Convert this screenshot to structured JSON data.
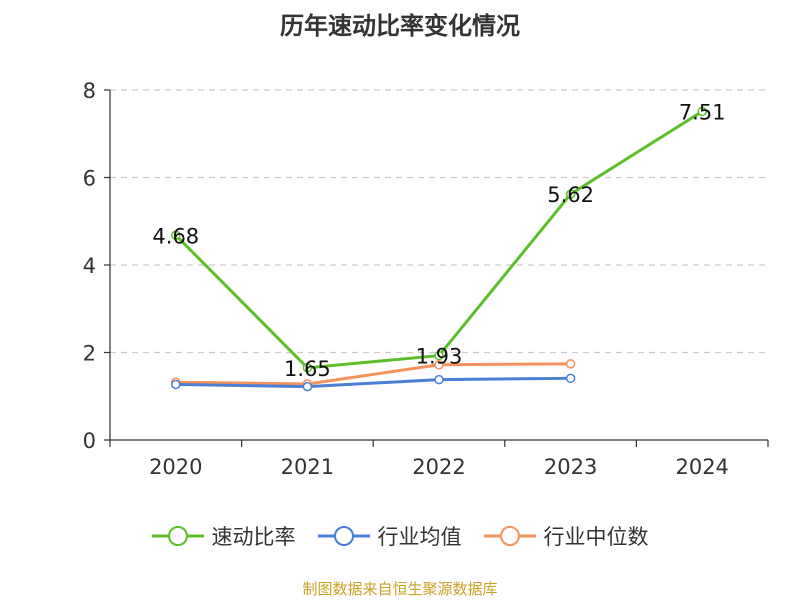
{
  "title": "历年速动比率变化情况",
  "source_note": "制图数据来自恒生聚源数据库",
  "chart_data": {
    "type": "line",
    "title": "历年速动比率变化情况",
    "categories": [
      "2020",
      "2021",
      "2022",
      "2023",
      "2024"
    ],
    "ylim": [
      0,
      8
    ],
    "yticks": [
      0,
      2,
      4,
      6,
      8
    ],
    "grid": "horizontal-dashed",
    "legend_position": "bottom-center",
    "series": [
      {
        "name": "速动比率",
        "color": "#5cbf2a",
        "values": [
          4.68,
          1.65,
          1.93,
          5.62,
          7.51
        ],
        "show_labels": true
      },
      {
        "name": "行业均值",
        "color": "#4a7fd6",
        "values": [
          1.27,
          1.22,
          1.38,
          1.41,
          null
        ],
        "show_labels": false
      },
      {
        "name": "行业中位数",
        "color": "#f5915b",
        "values": [
          1.32,
          1.28,
          1.72,
          1.74,
          null
        ],
        "show_labels": false
      }
    ]
  }
}
